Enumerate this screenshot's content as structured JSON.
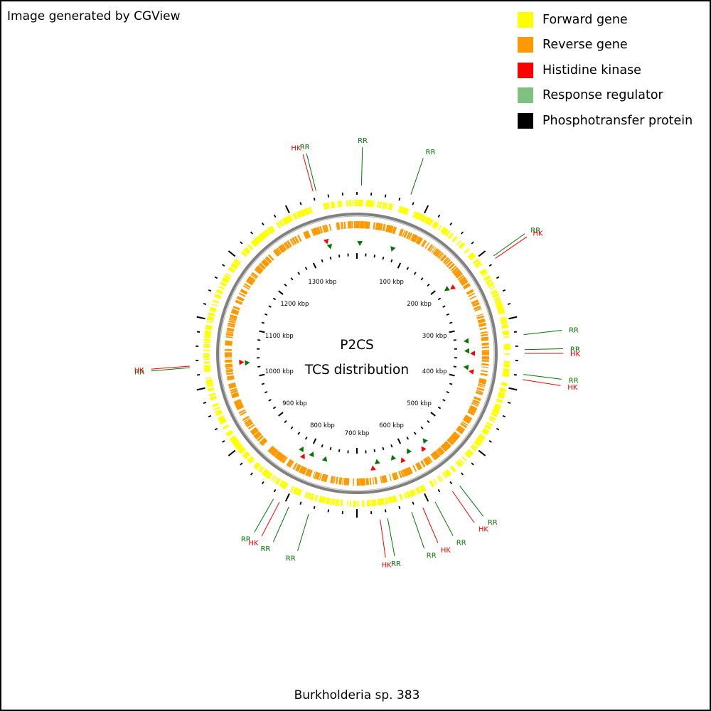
{
  "credit": "Image generated by CGView",
  "legend": [
    {
      "label": "Forward gene",
      "color": "#ffff00"
    },
    {
      "label": "Reverse gene",
      "color": "#ff9900"
    },
    {
      "label": "Histidine kinase",
      "color": "#ff0000"
    },
    {
      "label": "Response regulator",
      "color": "#80c080"
    },
    {
      "label": "Phosphotransfer protein",
      "color": "#000000"
    }
  ],
  "colors": {
    "forward": "#ffff00",
    "reverse": "#ff9900",
    "backbone": "#808080",
    "hk": "#ff0000",
    "rr": "#007700"
  },
  "map": {
    "title": "P2CS",
    "subtitle": "TCS distribution",
    "organism": "Burkholderia sp. 383",
    "genome_kbp": 1400,
    "tick_interval_kbp": 100,
    "minor_tick_interval_kbp": 20,
    "ticks": [
      {
        "kbp": 100,
        "label": "100 kbp"
      },
      {
        "kbp": 200,
        "label": "200 kbp"
      },
      {
        "kbp": 300,
        "label": "300 kbp"
      },
      {
        "kbp": 400,
        "label": "400 kbp"
      },
      {
        "kbp": 500,
        "label": "500 kbp"
      },
      {
        "kbp": 600,
        "label": "600 kbp"
      },
      {
        "kbp": 700,
        "label": "700 kbp"
      },
      {
        "kbp": 800,
        "label": "800 kbp"
      },
      {
        "kbp": 900,
        "label": "900 kbp"
      },
      {
        "kbp": 1000,
        "label": "1000 kbp"
      },
      {
        "kbp": 1100,
        "label": "1100 kbp"
      },
      {
        "kbp": 1200,
        "label": "1200 kbp"
      },
      {
        "kbp": 1300,
        "label": "1300 kbp"
      }
    ],
    "features": [
      {
        "type": "RR",
        "label": "RR",
        "kbp": 6
      },
      {
        "type": "RR",
        "label": "RR",
        "kbp": 73
      },
      {
        "type": "RR",
        "label": "RR",
        "kbp": 212
      },
      {
        "type": "HK",
        "label": "HK",
        "kbp": 216
      },
      {
        "type": "RR",
        "label": "RR",
        "kbp": 325
      },
      {
        "type": "RR",
        "label": "RR",
        "kbp": 345
      },
      {
        "type": "HK",
        "label": "HK",
        "kbp": 350
      },
      {
        "type": "RR",
        "label": "RR",
        "kbp": 378
      },
      {
        "type": "HK",
        "label": "HK",
        "kbp": 385
      },
      {
        "type": "RR",
        "label": "RR",
        "kbp": 553
      },
      {
        "type": "HK",
        "label": "HK",
        "kbp": 565
      },
      {
        "type": "RR",
        "label": "RR",
        "kbp": 592
      },
      {
        "type": "HK",
        "label": "HK",
        "kbp": 610
      },
      {
        "type": "RR",
        "label": "RR",
        "kbp": 626
      },
      {
        "type": "RR",
        "label": "RR",
        "kbp": 659
      },
      {
        "type": "HK",
        "label": "HK",
        "kbp": 669
      },
      {
        "type": "RR",
        "label": "RR",
        "kbp": 765
      },
      {
        "type": "RR",
        "label": "RR",
        "kbp": 793
      },
      {
        "type": "HK",
        "label": "HK",
        "kbp": 807
      },
      {
        "type": "RR",
        "label": "RR",
        "kbp": 816
      },
      {
        "type": "RR",
        "label": "RR",
        "kbp": 1031
      },
      {
        "type": "HK",
        "label": "HK",
        "kbp": 1033
      },
      {
        "type": "HK",
        "label": "HK",
        "kbp": 1341
      },
      {
        "type": "RR",
        "label": "RR",
        "kbp": 1345
      }
    ]
  }
}
